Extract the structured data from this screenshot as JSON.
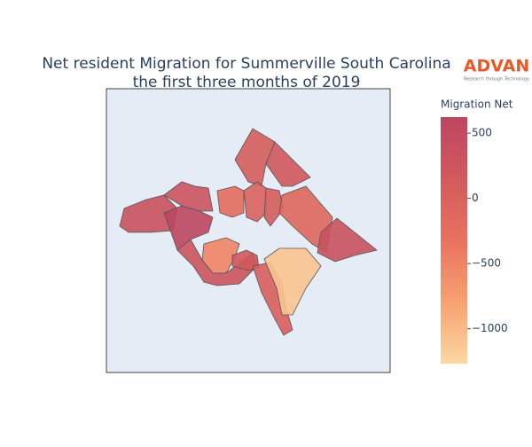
{
  "chart_data": {
    "type": "choropleth",
    "title": [
      "Net resident Migration for Summerville South Carolina",
      "the first three months of 2019"
    ],
    "logo": {
      "text": "ADVAN",
      "tagline": "Research through Technology"
    },
    "colorbar_title": "Migration Net",
    "colorscale": [
      "#fcd7a3",
      "#f7a170",
      "#e8725f",
      "#d25a5d",
      "#bc4661"
    ],
    "zlim": [
      -1267,
      623
    ],
    "zticks": [
      500,
      {
        "value": 0,
        "label": "0"
      },
      {
        "value": -500,
        "label": "−500"
      },
      {
        "value": -1000,
        "label": "−1000"
      }
    ],
    "values": [
      100,
      200,
      350,
      600,
      300,
      -200,
      0,
      100,
      -100,
      350,
      -500,
      300,
      200,
      50,
      -1100
    ]
  }
}
